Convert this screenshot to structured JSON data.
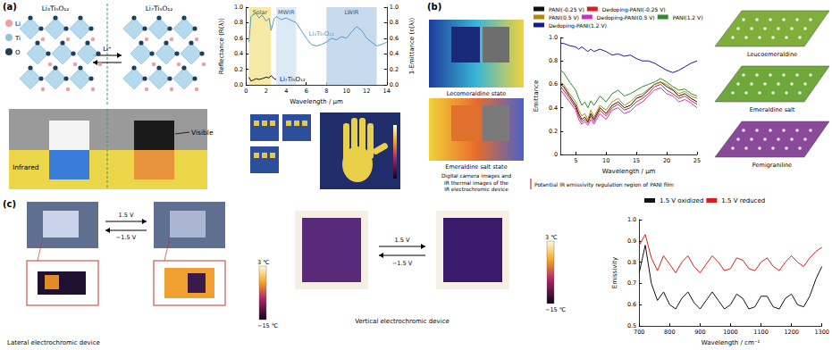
{
  "panels": {
    "a": {
      "label": "(a)",
      "structures": {
        "left": "Li₄Ti₅O₁₂",
        "right": "Li₇Ti₅O₁₂",
        "ion": "Li⁺",
        "legend": [
          "Li",
          "Ti",
          "O"
        ]
      },
      "photo": {
        "top": "Visible",
        "bottom": "Infrared"
      }
    },
    "b": {
      "label": "(b)",
      "states": [
        "Lecomeraldine state",
        "Emeraldine salt state"
      ],
      "caption": [
        "Digital camera images and",
        "IR thermal images of the",
        "IR electrochromic device"
      ],
      "note": "Potential IR emissivity regulation region of PANI film",
      "forms": [
        "Leucoemeraldine",
        "Emeraldine salt",
        "Pemigraniline"
      ]
    },
    "c": {
      "label": "(c)",
      "forward": "1.5 V",
      "backward": "−1.5 V",
      "devices": [
        "Lateral electrochromic device",
        "Vertical electrochromic device"
      ],
      "colorbar": {
        "range": [
          -15,
          3
        ],
        "ticks": [
          {
            "value": 3,
            "label": "3 ℃"
          },
          {
            "value": -15,
            "label": "−15 ℃"
          }
        ]
      }
    }
  },
  "chart_data": [
    {
      "type": "line",
      "xlabel": "Wavelength / μm",
      "ylabel": "Reflectance (R(λ))",
      "y2label": "1-Emittance (ε(λ))",
      "xlim": [
        0,
        14
      ],
      "xticks": [
        0,
        2,
        4,
        6,
        8,
        10,
        12,
        14
      ],
      "ylim": [
        0,
        1
      ],
      "yticks": [
        {
          "value": 0,
          "label": "0.0"
        },
        0.2,
        0.4,
        0.6,
        0.8,
        {
          "value": 1,
          "label": "1.0"
        }
      ],
      "y2lim": [
        0,
        1
      ],
      "y2ticks": [
        {
          "value": 0,
          "label": "0.0"
        },
        0.2,
        0.4,
        0.6,
        0.8,
        {
          "value": 1,
          "label": "1.0"
        }
      ],
      "grid": false,
      "bands": [
        {
          "label": "Solar",
          "range": [
            0.3,
            2.5
          ],
          "color": "#f7e9a6"
        },
        {
          "label": "MWIR",
          "range": [
            3,
            5
          ],
          "color": "#dde9f5"
        },
        {
          "label": "LWIR",
          "range": [
            8,
            13
          ],
          "color": "#c8dbee"
        }
      ],
      "x": [
        0.3,
        0.5,
        0.7,
        1,
        1.3,
        1.6,
        2,
        2.3,
        2.5,
        2.8,
        3,
        3.5,
        4,
        4.5,
        5,
        5.5,
        6,
        6.5,
        7,
        7.5,
        8,
        8.5,
        9,
        9.5,
        10,
        10.5,
        11,
        11.5,
        12,
        12.5,
        13,
        13.5,
        14
      ],
      "series": [
        {
          "name": "Li₄Ti₅O₁₂",
          "color": "#4f9fc4",
          "values": [
            0.55,
            0.88,
            0.9,
            0.92,
            0.86,
            0.9,
            0.82,
            0.86,
            0.7,
            0.85,
            0.88,
            0.84,
            0.86,
            0.83,
            0.8,
            0.7,
            0.6,
            0.52,
            0.5,
            0.52,
            0.55,
            0.6,
            0.58,
            0.62,
            0.6,
            0.68,
            0.75,
            0.7,
            0.6,
            0.55,
            0.5,
            0.52,
            0.55
          ]
        },
        {
          "name": "Li₇Ti₅O₁₂",
          "color": "#111111",
          "values": [
            0.1,
            0.05,
            0.06,
            0.08,
            0.07,
            0.08,
            0.1,
            0.09,
            0.12,
            0.08,
            0.07,
            null,
            null,
            null,
            null,
            null,
            null,
            null,
            null,
            null,
            null,
            null,
            null,
            null,
            null,
            null,
            null,
            null,
            null,
            null,
            null,
            null,
            null
          ]
        }
      ]
    },
    {
      "type": "line",
      "xlabel": "Wavelength / μm",
      "ylabel": "Emittance",
      "xlim": [
        2.5,
        25
      ],
      "xticks": [
        5,
        10,
        15,
        20,
        25
      ],
      "ylim": [
        0,
        1
      ],
      "yticks": [
        0,
        0.2,
        0.4,
        0.6,
        0.8,
        {
          "value": 1,
          "label": "1.0"
        }
      ],
      "grid": false,
      "legend": "top",
      "x": [
        2.5,
        3,
        4,
        5,
        5.5,
        6,
        6.5,
        7,
        7.5,
        8,
        9,
        10,
        11,
        12,
        13,
        14,
        15,
        16,
        17,
        18,
        19,
        20,
        21,
        22,
        23,
        24,
        25
      ],
      "series": [
        {
          "name": "PANI(-0.25 V)",
          "color": "#111111",
          "values": [
            0.6,
            0.58,
            0.5,
            0.42,
            0.35,
            0.3,
            0.32,
            0.28,
            0.35,
            0.3,
            0.4,
            0.35,
            0.42,
            0.45,
            0.4,
            0.42,
            0.48,
            0.5,
            0.55,
            0.6,
            0.62,
            0.58,
            0.55,
            0.5,
            0.52,
            0.48,
            0.45
          ]
        },
        {
          "name": "Dedoping-PANI(-0.25 V)",
          "color": "#d62020",
          "values": [
            0.58,
            0.55,
            0.48,
            0.4,
            0.33,
            0.28,
            0.3,
            0.27,
            0.33,
            0.28,
            0.38,
            0.33,
            0.4,
            0.43,
            0.38,
            0.4,
            0.45,
            0.48,
            0.52,
            0.58,
            0.6,
            0.55,
            0.52,
            0.48,
            0.5,
            0.46,
            0.43
          ]
        },
        {
          "name": "PANI(0.5 V)",
          "color": "#b8860b",
          "values": [
            0.62,
            0.6,
            0.52,
            0.45,
            0.38,
            0.33,
            0.35,
            0.3,
            0.38,
            0.32,
            0.42,
            0.38,
            0.45,
            0.48,
            0.42,
            0.45,
            0.5,
            0.52,
            0.56,
            0.6,
            0.62,
            0.6,
            0.56,
            0.52,
            0.54,
            0.5,
            0.48
          ]
        },
        {
          "name": "Dedoping-PANI(0.5 V)",
          "color": "#c433c4",
          "values": [
            0.55,
            0.52,
            0.45,
            0.38,
            0.3,
            0.26,
            0.28,
            0.25,
            0.3,
            0.26,
            0.35,
            0.3,
            0.38,
            0.4,
            0.35,
            0.37,
            0.42,
            0.45,
            0.5,
            0.55,
            0.57,
            0.52,
            0.5,
            0.45,
            0.47,
            0.44,
            0.4
          ]
        },
        {
          "name": "PANI(1.2 V)",
          "color": "#2e8b2e",
          "values": [
            0.72,
            0.7,
            0.62,
            0.55,
            0.48,
            0.42,
            0.45,
            0.4,
            0.46,
            0.42,
            0.5,
            0.45,
            0.52,
            0.55,
            0.5,
            0.52,
            0.55,
            0.58,
            0.6,
            0.62,
            0.65,
            0.62,
            0.58,
            0.55,
            0.56,
            0.52,
            0.5
          ]
        },
        {
          "name": "Dedoping-PANI(1.2 V)",
          "color": "#1a1a8c",
          "values": [
            0.95,
            0.95,
            0.93,
            0.92,
            0.9,
            0.92,
            0.9,
            0.88,
            0.9,
            0.88,
            0.9,
            0.88,
            0.85,
            0.86,
            0.84,
            0.85,
            0.82,
            0.8,
            0.8,
            0.78,
            0.75,
            0.72,
            0.7,
            0.72,
            0.75,
            0.78,
            0.8
          ]
        }
      ]
    },
    {
      "type": "line",
      "xlabel": "Wavelength / cm⁻¹",
      "ylabel": "Emissivity",
      "xlim": [
        700,
        1300
      ],
      "xticks": [
        700,
        800,
        900,
        1000,
        1100,
        1200,
        1300
      ],
      "ylim": [
        0.5,
        1
      ],
      "yticks": [
        0.5,
        0.6,
        0.7,
        0.8,
        0.9,
        {
          "value": 1,
          "label": "1.0"
        }
      ],
      "grid": false,
      "legend": "top",
      "x": [
        700,
        720,
        740,
        760,
        780,
        800,
        820,
        840,
        860,
        880,
        900,
        920,
        940,
        960,
        980,
        1000,
        1020,
        1040,
        1060,
        1080,
        1100,
        1120,
        1140,
        1160,
        1180,
        1200,
        1220,
        1240,
        1260,
        1280,
        1300
      ],
      "series": [
        {
          "name": "1.5 V oxidized",
          "color": "#111111",
          "values": [
            0.75,
            0.88,
            0.7,
            0.62,
            0.66,
            0.6,
            0.58,
            0.63,
            0.66,
            0.61,
            0.58,
            0.62,
            0.66,
            0.62,
            0.58,
            0.6,
            0.65,
            0.63,
            0.58,
            0.59,
            0.64,
            0.64,
            0.59,
            0.58,
            0.63,
            0.65,
            0.6,
            0.59,
            0.64,
            0.72,
            0.78
          ]
        },
        {
          "name": "1.5 V reduced",
          "color": "#d62020",
          "values": [
            0.88,
            0.93,
            0.82,
            0.76,
            0.83,
            0.79,
            0.75,
            0.8,
            0.83,
            0.78,
            0.75,
            0.79,
            0.83,
            0.8,
            0.76,
            0.77,
            0.82,
            0.81,
            0.77,
            0.76,
            0.8,
            0.82,
            0.78,
            0.76,
            0.8,
            0.83,
            0.8,
            0.78,
            0.82,
            0.85,
            0.87
          ]
        }
      ]
    }
  ]
}
